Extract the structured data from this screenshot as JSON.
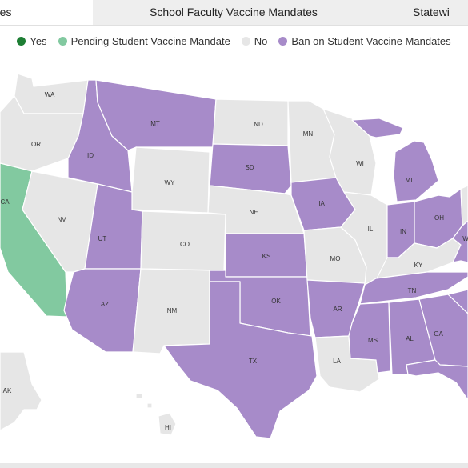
{
  "tabs": [
    {
      "label": "ates",
      "active": true
    },
    {
      "label": "School Faculty Vaccine Mandates",
      "active": false
    },
    {
      "label": "Statewi",
      "active": false
    }
  ],
  "legend": [
    {
      "label": "Yes",
      "color": "#1e7e34"
    },
    {
      "label": "Pending Student Vaccine Mandate",
      "color": "#82c9a0"
    },
    {
      "label": "No",
      "color": "#e6e6e6"
    },
    {
      "label": "Ban on Student Vaccine Mandates",
      "color": "#a78bc9"
    }
  ],
  "colors": {
    "yes": "#1e7e34",
    "pending": "#82c9a0",
    "no": "#e6e6e6",
    "ban": "#a78bc9"
  },
  "states": [
    {
      "code": "WA",
      "status": "no"
    },
    {
      "code": "OR",
      "status": "no"
    },
    {
      "code": "CA",
      "status": "pending"
    },
    {
      "code": "NV",
      "status": "no"
    },
    {
      "code": "ID",
      "status": "ban"
    },
    {
      "code": "MT",
      "status": "ban"
    },
    {
      "code": "WY",
      "status": "no"
    },
    {
      "code": "UT",
      "status": "ban"
    },
    {
      "code": "CO",
      "status": "no"
    },
    {
      "code": "AZ",
      "status": "ban"
    },
    {
      "code": "NM",
      "status": "no"
    },
    {
      "code": "ND",
      "status": "no"
    },
    {
      "code": "SD",
      "status": "ban"
    },
    {
      "code": "NE",
      "status": "no"
    },
    {
      "code": "KS",
      "status": "ban"
    },
    {
      "code": "OK",
      "status": "ban"
    },
    {
      "code": "TX",
      "status": "ban"
    },
    {
      "code": "MN",
      "status": "no"
    },
    {
      "code": "IA",
      "status": "ban"
    },
    {
      "code": "MO",
      "status": "no"
    },
    {
      "code": "AR",
      "status": "ban"
    },
    {
      "code": "LA",
      "status": "no"
    },
    {
      "code": "WI",
      "status": "no"
    },
    {
      "code": "IL",
      "status": "no"
    },
    {
      "code": "MI",
      "status": "ban"
    },
    {
      "code": "IN",
      "status": "ban"
    },
    {
      "code": "OH",
      "status": "ban"
    },
    {
      "code": "KY",
      "status": "no"
    },
    {
      "code": "TN",
      "status": "ban"
    },
    {
      "code": "MS",
      "status": "ban"
    },
    {
      "code": "AL",
      "status": "ban"
    },
    {
      "code": "GA",
      "status": "ban"
    },
    {
      "code": "WV",
      "status": "ban"
    },
    {
      "code": "SC",
      "status": "ban"
    },
    {
      "code": "FL",
      "status": "ban"
    },
    {
      "code": "PA",
      "status": "no"
    },
    {
      "code": "AK",
      "status": "no"
    },
    {
      "code": "HI",
      "status": "no"
    }
  ],
  "labels": {
    "WA": "WA",
    "OR": "OR",
    "CA": "CA",
    "NV": "NV",
    "ID": "ID",
    "MT": "MT",
    "WY": "WY",
    "UT": "UT",
    "CO": "CO",
    "AZ": "AZ",
    "NM": "NM",
    "ND": "ND",
    "SD": "SD",
    "NE": "NE",
    "KS": "KS",
    "OK": "OK",
    "TX": "TX",
    "MN": "MN",
    "IA": "IA",
    "MO": "MO",
    "AR": "AR",
    "LA": "LA",
    "WI": "WI",
    "IL": "IL",
    "MI": "MI",
    "IN": "IN",
    "OH": "OH",
    "KY": "KY",
    "TN": "TN",
    "MS": "MS",
    "AL": "AL",
    "GA": "GA",
    "AK": "AK",
    "HI": "HI",
    "WV": "W"
  }
}
